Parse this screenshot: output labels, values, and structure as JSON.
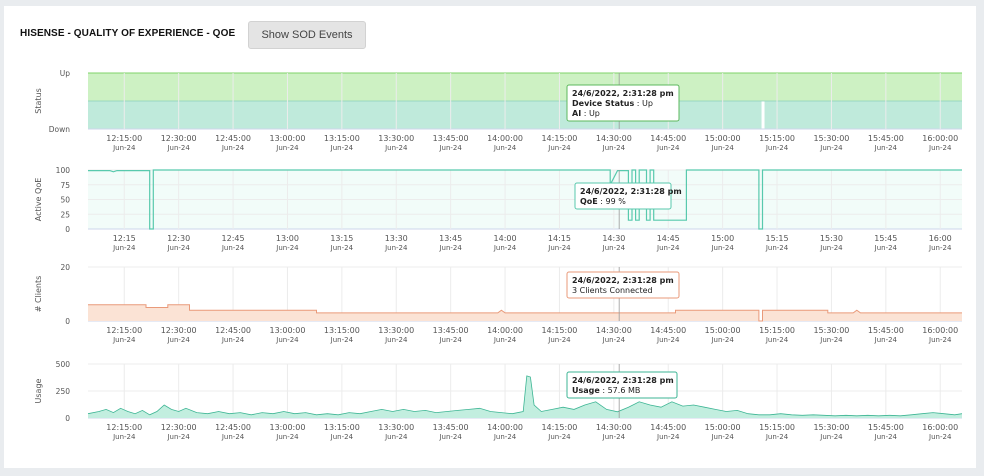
{
  "header": {
    "title": "HISENSE - QUALITY OF EXPERIENCE - QOE",
    "sod_button_label": "Show SOD Events"
  },
  "colors": {
    "status_up": "#cdf1c3",
    "status_ai": "#bfeadb",
    "qoe": "#58c9ad",
    "clients_fill": "#fbe3d5",
    "clients_line": "#e99a7a",
    "usage_fill": "#c2eedf",
    "usage_line": "#3db594",
    "crosshair": "#999999"
  },
  "cursor_time": "14:31:28",
  "chart_data": [
    {
      "type": "area",
      "ylabel": "Status",
      "y_categories": [
        "Down",
        "Up"
      ],
      "x_ticks": [
        "12:15:00",
        "12:30:00",
        "12:45:00",
        "13:00:00",
        "13:15:00",
        "13:30:00",
        "13:45:00",
        "14:00:00",
        "14:15:00",
        "14:30:00",
        "14:45:00",
        "15:00:00",
        "15:15:00",
        "15:30:00",
        "15:45:00",
        "16:00:00"
      ],
      "x_date": "Jun-24",
      "series": [
        {
          "name": "Device Status",
          "points": [
            [
              "12:05:00",
              "Up"
            ],
            [
              "16:06:00",
              "Up"
            ]
          ]
        },
        {
          "name": "AI",
          "points": [
            [
              "12:05:00",
              "Up"
            ],
            [
              "15:10:30",
              "Up"
            ],
            [
              "15:11:00",
              "Down"
            ],
            [
              "15:11:30",
              "Up"
            ],
            [
              "16:06:00",
              "Up"
            ]
          ]
        }
      ],
      "tooltip": {
        "time": "24/6/2022, 2:31:28 pm",
        "lines": [
          {
            "label": "Device Status",
            "value": "Up"
          },
          {
            "label": "AI",
            "value": "Up"
          }
        ]
      }
    },
    {
      "type": "line",
      "ylabel": "Active QoE",
      "ylim": [
        0,
        100
      ],
      "y_ticks": [
        0,
        25,
        50,
        75,
        100
      ],
      "x_ticks": [
        "12:15",
        "12:30",
        "12:45",
        "13:00",
        "13:15",
        "13:30",
        "13:45",
        "14:00",
        "14:15",
        "14:30",
        "14:45",
        "15:00",
        "15:15",
        "15:30",
        "15:45",
        "16:00"
      ],
      "x_date": "Jun-24",
      "points": [
        [
          "12:05",
          99
        ],
        [
          "12:11",
          99
        ],
        [
          "12:12",
          97
        ],
        [
          "12:13",
          99
        ],
        [
          "12:22",
          99
        ],
        [
          "12:22",
          0
        ],
        [
          "12:23",
          0
        ],
        [
          "12:23",
          100
        ],
        [
          "14:29",
          100
        ],
        [
          "14:29",
          75
        ],
        [
          "14:31",
          99
        ],
        [
          "14:34",
          99
        ],
        [
          "14:34",
          15
        ],
        [
          "14:35",
          15
        ],
        [
          "14:35",
          100
        ],
        [
          "14:36",
          100
        ],
        [
          "14:36",
          15
        ],
        [
          "14:37",
          15
        ],
        [
          "14:37",
          100
        ],
        [
          "14:39",
          100
        ],
        [
          "14:39",
          15
        ],
        [
          "14:40",
          15
        ],
        [
          "14:40",
          100
        ],
        [
          "14:41",
          100
        ],
        [
          "14:41",
          15
        ],
        [
          "14:50",
          15
        ],
        [
          "14:50",
          100
        ],
        [
          "15:10",
          100
        ],
        [
          "15:10",
          0
        ],
        [
          "15:11",
          0
        ],
        [
          "15:11",
          100
        ],
        [
          "16:06",
          100
        ]
      ],
      "tooltip": {
        "time": "24/6/2022, 2:31:28 pm",
        "lines": [
          {
            "label": "QoE",
            "value": "99 %"
          }
        ]
      }
    },
    {
      "type": "area",
      "ylabel": "# Clients",
      "ylim": [
        0,
        20
      ],
      "y_ticks": [
        0,
        20
      ],
      "x_ticks": [
        "12:15:00",
        "12:30:00",
        "12:45:00",
        "13:00:00",
        "13:15:00",
        "13:30:00",
        "13:45:00",
        "14:00:00",
        "14:15:00",
        "14:30:00",
        "14:45:00",
        "15:00:00",
        "15:15:00",
        "15:30:00",
        "15:45:00",
        "16:00:00"
      ],
      "x_date": "Jun-24",
      "points": [
        [
          "12:05",
          6
        ],
        [
          "12:21",
          6
        ],
        [
          "12:21",
          5
        ],
        [
          "12:27",
          5
        ],
        [
          "12:27",
          6
        ],
        [
          "12:33",
          6
        ],
        [
          "12:33",
          4
        ],
        [
          "13:08",
          4
        ],
        [
          "13:08",
          3
        ],
        [
          "13:58",
          3
        ],
        [
          "13:59",
          4
        ],
        [
          "14:00",
          3
        ],
        [
          "14:47",
          3
        ],
        [
          "14:47",
          4
        ],
        [
          "15:10",
          4
        ],
        [
          "15:10",
          0
        ],
        [
          "15:11",
          0
        ],
        [
          "15:11",
          4
        ],
        [
          "15:29",
          4
        ],
        [
          "15:29",
          3
        ],
        [
          "15:36",
          3
        ],
        [
          "15:37",
          4
        ],
        [
          "15:38",
          3
        ],
        [
          "16:06",
          3
        ]
      ],
      "tooltip": {
        "time": "24/6/2022, 2:31:28 pm",
        "lines": [
          {
            "label": "",
            "value": "3 Clients Connected"
          }
        ]
      }
    },
    {
      "type": "area",
      "ylabel": "Usage",
      "ylim": [
        0,
        500
      ],
      "y_ticks": [
        0,
        250,
        500
      ],
      "x_ticks": [
        "12:15:00",
        "12:30:00",
        "12:45:00",
        "13:00:00",
        "13:15:00",
        "13:30:00",
        "13:45:00",
        "14:00:00",
        "14:15:00",
        "14:30:00",
        "14:45:00",
        "15:00:00",
        "15:15:00",
        "15:30:00",
        "15:45:00",
        "16:00:00"
      ],
      "x_date": "Jun-24",
      "points": [
        [
          "12:05",
          40
        ],
        [
          "12:08",
          60
        ],
        [
          "12:10",
          80
        ],
        [
          "12:12",
          50
        ],
        [
          "12:14",
          90
        ],
        [
          "12:16",
          60
        ],
        [
          "12:18",
          40
        ],
        [
          "12:20",
          70
        ],
        [
          "12:22",
          30
        ],
        [
          "12:24",
          60
        ],
        [
          "12:26",
          120
        ],
        [
          "12:28",
          80
        ],
        [
          "12:30",
          60
        ],
        [
          "12:32",
          90
        ],
        [
          "12:35",
          50
        ],
        [
          "12:38",
          40
        ],
        [
          "12:41",
          60
        ],
        [
          "12:44",
          40
        ],
        [
          "12:47",
          50
        ],
        [
          "12:50",
          30
        ],
        [
          "12:53",
          50
        ],
        [
          "12:56",
          40
        ],
        [
          "12:59",
          60
        ],
        [
          "13:02",
          40
        ],
        [
          "13:05",
          50
        ],
        [
          "13:08",
          30
        ],
        [
          "13:11",
          40
        ],
        [
          "13:14",
          30
        ],
        [
          "13:17",
          50
        ],
        [
          "13:20",
          40
        ],
        [
          "13:23",
          60
        ],
        [
          "13:26",
          80
        ],
        [
          "13:29",
          60
        ],
        [
          "13:32",
          80
        ],
        [
          "13:35",
          60
        ],
        [
          "13:38",
          70
        ],
        [
          "13:41",
          50
        ],
        [
          "13:44",
          60
        ],
        [
          "13:47",
          70
        ],
        [
          "13:50",
          80
        ],
        [
          "13:53",
          90
        ],
        [
          "13:56",
          60
        ],
        [
          "13:59",
          50
        ],
        [
          "14:02",
          40
        ],
        [
          "14:05",
          60
        ],
        [
          "14:06",
          390
        ],
        [
          "14:07",
          380
        ],
        [
          "14:08",
          120
        ],
        [
          "14:10",
          60
        ],
        [
          "14:13",
          80
        ],
        [
          "14:16",
          100
        ],
        [
          "14:19",
          80
        ],
        [
          "14:22",
          120
        ],
        [
          "14:25",
          150
        ],
        [
          "14:28",
          80
        ],
        [
          "14:31",
          57.6
        ],
        [
          "14:34",
          100
        ],
        [
          "14:37",
          150
        ],
        [
          "14:40",
          120
        ],
        [
          "14:43",
          100
        ],
        [
          "14:46",
          150
        ],
        [
          "14:49",
          110
        ],
        [
          "14:52",
          120
        ],
        [
          "14:55",
          100
        ],
        [
          "14:58",
          80
        ],
        [
          "15:01",
          60
        ],
        [
          "15:04",
          70
        ],
        [
          "15:07",
          40
        ],
        [
          "15:10",
          30
        ],
        [
          "15:13",
          30
        ],
        [
          "15:16",
          40
        ],
        [
          "15:19",
          30
        ],
        [
          "15:22",
          25
        ],
        [
          "15:25",
          30
        ],
        [
          "15:28",
          25
        ],
        [
          "15:31",
          20
        ],
        [
          "15:34",
          25
        ],
        [
          "15:37",
          20
        ],
        [
          "15:40",
          25
        ],
        [
          "15:43",
          20
        ],
        [
          "15:46",
          25
        ],
        [
          "15:49",
          20
        ],
        [
          "15:52",
          30
        ],
        [
          "15:55",
          40
        ],
        [
          "15:58",
          50
        ],
        [
          "16:01",
          40
        ],
        [
          "16:04",
          30
        ],
        [
          "16:06",
          40
        ]
      ],
      "tooltip": {
        "time": "24/6/2022, 2:31:28 pm",
        "lines": [
          {
            "label": "Usage",
            "value": "57.6 MB"
          }
        ]
      }
    }
  ]
}
